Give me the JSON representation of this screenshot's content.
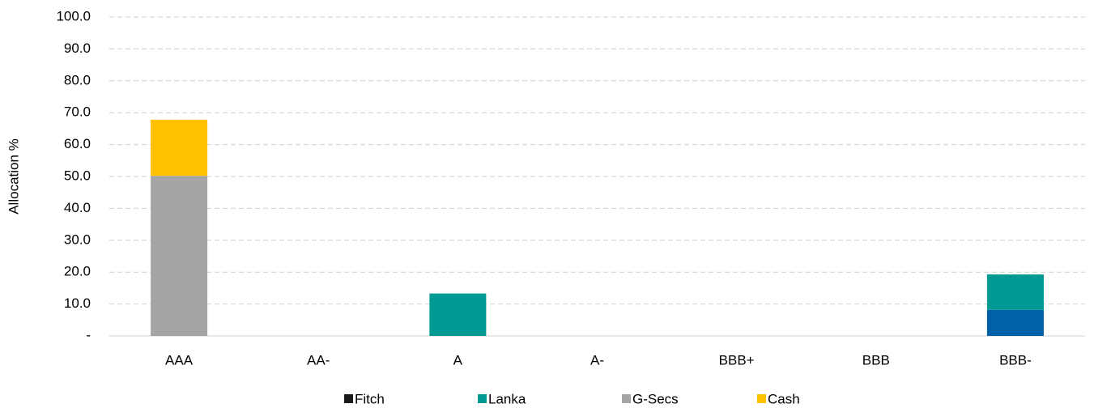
{
  "chart_data": {
    "type": "bar",
    "stacked": true,
    "y_label": "Allocation %",
    "categories": [
      "AAA",
      "AA-",
      "A",
      "A-",
      "BBB+",
      "BBB",
      "BBB-"
    ],
    "series": [
      {
        "name": null,
        "color": "#0061a8",
        "values": [
          0,
          0,
          0,
          0,
          0,
          0,
          8.2
        ]
      },
      {
        "name": "Fitch",
        "color": "#1a1a1a",
        "values": [
          0,
          0,
          0,
          0,
          0,
          0,
          0
        ]
      },
      {
        "name": "Lanka",
        "color": "#009a93",
        "values": [
          0,
          0,
          13.3,
          0,
          0,
          0,
          11.1
        ]
      },
      {
        "name": "G-Secs",
        "color": "#a5a5a5",
        "values": [
          50.2,
          0,
          0,
          0,
          0,
          0,
          0
        ]
      },
      {
        "name": "Cash",
        "color": "#ffc000",
        "values": [
          17.6,
          0,
          0,
          0,
          0,
          0,
          0
        ]
      }
    ],
    "ylim": [
      0,
      100
    ],
    "yticks": [
      {
        "value": 0,
        "label": "-"
      },
      {
        "value": 10,
        "label": "10.0"
      },
      {
        "value": 20,
        "label": "20.0"
      },
      {
        "value": 30,
        "label": "30.0"
      },
      {
        "value": 40,
        "label": "40.0"
      },
      {
        "value": 50,
        "label": "50.0"
      },
      {
        "value": 60,
        "label": "60.0"
      },
      {
        "value": 70,
        "label": "70.0"
      },
      {
        "value": 80,
        "label": "80.0"
      },
      {
        "value": 90,
        "label": "90.0"
      },
      {
        "value": 100,
        "label": "100.0"
      }
    ],
    "grid": true,
    "legend": "bottom"
  }
}
